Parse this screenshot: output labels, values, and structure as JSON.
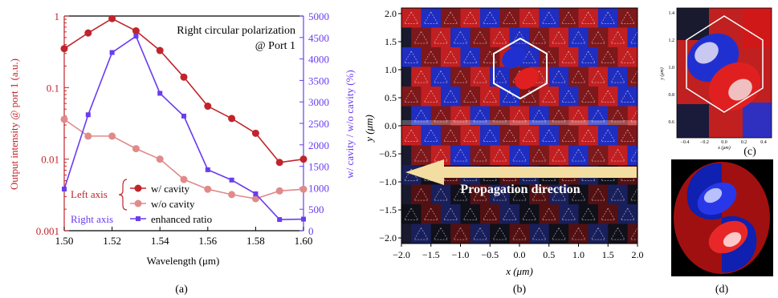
{
  "chart_data": {
    "type": "line",
    "annotation": [
      "Right circular polarization",
      "@ Port 1"
    ],
    "xlabel": "Wavelength (μm)",
    "ylabel_left": "Output intensity @ port 1 (a.u.)",
    "ylabel_right": "w/ cavity / w/o cavity (%)",
    "xlim": [
      1.5,
      1.6
    ],
    "ylim_left": [
      0.001,
      1
    ],
    "yscale_left": "log",
    "ylim_right": [
      0,
      5000
    ],
    "x_ticks": [
      "1.50",
      "1.52",
      "1.54",
      "1.56",
      "1.58",
      "1.60"
    ],
    "y_left_ticks": [
      "0.001",
      "0.01",
      "0.1",
      "1"
    ],
    "y_right_ticks": [
      "0",
      "500",
      "1000",
      "1500",
      "2000",
      "2500",
      "3000",
      "3500",
      "4000",
      "4500",
      "5000"
    ],
    "x": [
      1.5,
      1.51,
      1.52,
      1.53,
      1.54,
      1.55,
      1.56,
      1.57,
      1.58,
      1.59,
      1.6
    ],
    "series": [
      {
        "name": "w/ cavity",
        "axis": "left",
        "color": "#c0242c",
        "values": [
          0.35,
          0.58,
          0.92,
          0.62,
          0.33,
          0.14,
          0.055,
          0.037,
          0.023,
          0.009,
          0.01
        ]
      },
      {
        "name": "w/o cavity",
        "axis": "left",
        "color": "#e08a8a",
        "values": [
          0.036,
          0.021,
          0.021,
          0.014,
          0.01,
          0.0052,
          0.0038,
          0.0032,
          0.0028,
          0.0036,
          0.0038
        ]
      },
      {
        "name": "enhanced ratio",
        "axis": "right",
        "color": "#6a3cf0",
        "values": [
          970,
          2700,
          4150,
          4530,
          3200,
          2670,
          1420,
          1180,
          860,
          260,
          270
        ]
      }
    ],
    "legend_groups": {
      "left": "Left axis",
      "right": "Right axis"
    },
    "legend_position": "bottom-left"
  },
  "panel_b": {
    "xlabel": "x (μm)",
    "ylabel": "y (μm)",
    "x_ticks": [
      "−2.0",
      "−1.5",
      "−1.0",
      "−0.5",
      "0.0",
      "0.5",
      "1.0",
      "1.5",
      "2.0"
    ],
    "y_ticks": [
      "2.0",
      "1.5",
      "1.0",
      "0.5",
      "0.0",
      "−0.5",
      "−1.0",
      "−1.5",
      "−2.0"
    ],
    "arrow_text": "Propagation direction"
  },
  "panel_c": {
    "xlabel": "x (μm)",
    "ylabel": "y (μm)",
    "x_ticks": [
      "−0.4",
      "−0.2",
      "0.0",
      "0.2",
      "0.4"
    ],
    "y_ticks": [
      "1.4",
      "1.2",
      "1.0",
      "0.8",
      "0.6"
    ]
  },
  "captions": {
    "a": "(a)",
    "b": "(b)",
    "c": "(c)",
    "d": "(d)"
  },
  "colors": {
    "red": "#d42020",
    "blue": "#2030d0",
    "arrow": "#f3dda0"
  }
}
